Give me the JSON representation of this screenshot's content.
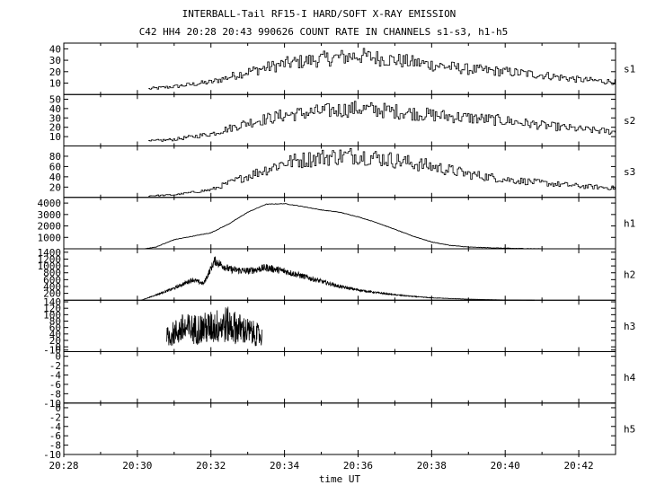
{
  "chart_data": {
    "type": "line",
    "title": "INTERBALL-Tail RF15-I HARD/SOFT X-RAY EMISSION",
    "subtitle": "C42 HH4 20:28 20:43 990626  COUNT RATE IN CHANNELS s1-s3, h1-h5",
    "xlabel": "time UT",
    "x_range_minutes": [
      0,
      15
    ],
    "x_ticks": [
      {
        "t": 0,
        "label": "20:28"
      },
      {
        "t": 2,
        "label": "20:30"
      },
      {
        "t": 4,
        "label": "20:32"
      },
      {
        "t": 6,
        "label": "20:34"
      },
      {
        "t": 8,
        "label": "20:36"
      },
      {
        "t": 10,
        "label": "20:38"
      },
      {
        "t": 12,
        "label": "20:40"
      },
      {
        "t": 14,
        "label": "20:42"
      }
    ],
    "panels": [
      {
        "name": "s1",
        "ylim": [
          0,
          45
        ],
        "yticks": [
          10,
          20,
          30,
          40
        ],
        "series": [
          [
            2.3,
            5
          ],
          [
            3,
            7
          ],
          [
            4,
            11
          ],
          [
            5,
            20
          ],
          [
            6,
            27
          ],
          [
            7,
            31
          ],
          [
            8,
            34
          ],
          [
            9,
            30
          ],
          [
            10,
            26
          ],
          [
            11,
            22
          ],
          [
            12,
            20
          ],
          [
            13,
            17
          ],
          [
            14,
            13
          ],
          [
            15,
            11
          ]
        ]
      },
      {
        "name": "s2",
        "ylim": [
          0,
          55
        ],
        "yticks": [
          10,
          20,
          30,
          40,
          50
        ],
        "series": [
          [
            2.3,
            5
          ],
          [
            3,
            7
          ],
          [
            4,
            13
          ],
          [
            5,
            25
          ],
          [
            6,
            33
          ],
          [
            7,
            37
          ],
          [
            8,
            40
          ],
          [
            9,
            37
          ],
          [
            10,
            33
          ],
          [
            11,
            30
          ],
          [
            12,
            27
          ],
          [
            13,
            22
          ],
          [
            14,
            18
          ],
          [
            15,
            15
          ]
        ]
      },
      {
        "name": "s3",
        "ylim": [
          0,
          100
        ],
        "yticks": [
          20,
          40,
          60,
          80
        ],
        "series": [
          [
            2.3,
            3
          ],
          [
            3,
            5
          ],
          [
            4,
            15
          ],
          [
            5,
            42
          ],
          [
            6,
            68
          ],
          [
            7,
            78
          ],
          [
            8,
            82
          ],
          [
            9,
            72
          ],
          [
            10,
            60
          ],
          [
            11,
            45
          ],
          [
            12,
            35
          ],
          [
            13,
            28
          ],
          [
            14,
            22
          ],
          [
            15,
            18
          ]
        ]
      },
      {
        "name": "h1",
        "ylim": [
          0,
          4500
        ],
        "yticks": [
          1000,
          2000,
          3000,
          4000
        ],
        "series": [
          [
            2.2,
            0
          ],
          [
            2.5,
            150
          ],
          [
            3,
            800
          ],
          [
            3.5,
            1100
          ],
          [
            4,
            1400
          ],
          [
            4.5,
            2200
          ],
          [
            5,
            3200
          ],
          [
            5.5,
            3900
          ],
          [
            6,
            3950
          ],
          [
            6.5,
            3700
          ],
          [
            7,
            3400
          ],
          [
            7.5,
            3200
          ],
          [
            8,
            2800
          ],
          [
            8.5,
            2300
          ],
          [
            9,
            1700
          ],
          [
            9.5,
            1100
          ],
          [
            10,
            600
          ],
          [
            10.5,
            300
          ],
          [
            11,
            150
          ],
          [
            12,
            50
          ],
          [
            13,
            0
          ]
        ]
      },
      {
        "name": "h2",
        "ylim": [
          0,
          1500
        ],
        "yticks": [
          200,
          400,
          600,
          800,
          1000,
          1200,
          1400
        ],
        "series": [
          [
            2.1,
            0
          ],
          [
            2.5,
            150
          ],
          [
            3,
            350
          ],
          [
            3.5,
            600
          ],
          [
            3.8,
            480
          ],
          [
            4.1,
            1150
          ],
          [
            4.5,
            900
          ],
          [
            5,
            850
          ],
          [
            5.5,
            950
          ],
          [
            6,
            850
          ],
          [
            6.5,
            700
          ],
          [
            7,
            550
          ],
          [
            7.5,
            400
          ],
          [
            8,
            300
          ],
          [
            8.5,
            220
          ],
          [
            9,
            160
          ],
          [
            9.5,
            110
          ],
          [
            10,
            70
          ],
          [
            11,
            30
          ],
          [
            12,
            8
          ],
          [
            12.8,
            0
          ]
        ]
      },
      {
        "name": "h3",
        "ylim": [
          -15,
          145
        ],
        "yticks": [
          -10,
          0,
          20,
          40,
          60,
          80,
          100,
          120,
          140
        ],
        "series": [
          [
            2.8,
            30
          ],
          [
            3.2,
            55
          ],
          [
            3.6,
            55
          ],
          [
            4,
            60
          ],
          [
            4.4,
            70
          ],
          [
            4.8,
            55
          ],
          [
            5.2,
            40
          ],
          [
            5.4,
            30
          ]
        ]
      },
      {
        "name": "h4",
        "ylim": [
          -10,
          1
        ],
        "yticks": [
          -10,
          -8,
          -6,
          -4,
          -2,
          0
        ],
        "series": []
      },
      {
        "name": "h5",
        "ylim": [
          -10,
          1
        ],
        "yticks": [
          -10,
          -8,
          -6,
          -4,
          -2,
          0
        ],
        "series": []
      }
    ]
  }
}
